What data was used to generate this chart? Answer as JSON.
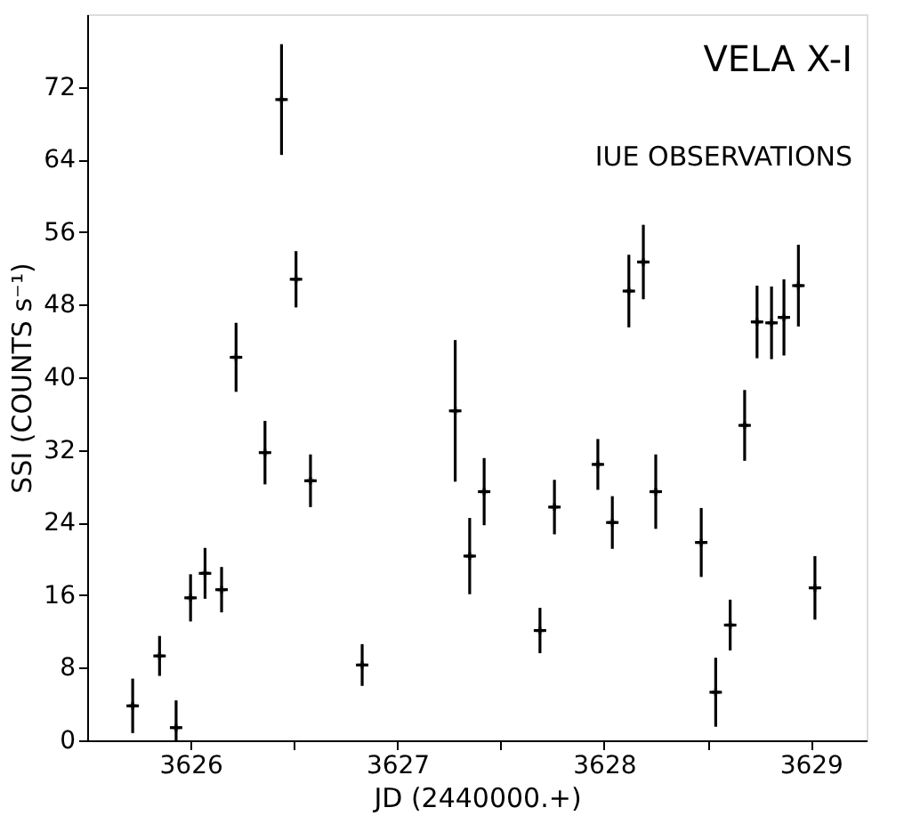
{
  "chart_data": {
    "type": "scatter",
    "xlabel": "JD (2440000.+)",
    "ylabel": "SSI (COUNTS s⁻¹)",
    "annotations": [
      "VELA X-I",
      "IUE OBSERVATIONS"
    ],
    "x": [
      3625.72,
      3625.85,
      3625.93,
      3626.0,
      3626.07,
      3626.15,
      3626.22,
      3626.36,
      3626.44,
      3626.51,
      3626.58,
      3626.83,
      3627.28,
      3627.35,
      3627.42,
      3627.69,
      3627.76,
      3627.97,
      3628.04,
      3628.12,
      3628.19,
      3628.25,
      3628.47,
      3628.54,
      3628.61,
      3628.68,
      3628.74,
      3628.81,
      3628.87,
      3628.94,
      3629.02
    ],
    "values": [
      3.8,
      9.3,
      1.4,
      15.7,
      18.4,
      16.6,
      42.2,
      31.7,
      70.6,
      50.8,
      28.6,
      8.3,
      36.3,
      20.3,
      27.4,
      12.1,
      25.7,
      30.4,
      24.0,
      49.5,
      52.7,
      27.4,
      21.8,
      5.3,
      12.7,
      34.7,
      46.1,
      46.0,
      46.6,
      50.1,
      16.8
    ],
    "errors": [
      3,
      2.2,
      [
        0,
        4.4
      ],
      2.6,
      2.8,
      2.5,
      3.8,
      3.5,
      6.1,
      3.1,
      2.9,
      2.3,
      7.8,
      4.2,
      3.7,
      2.5,
      3,
      2.8,
      2.9,
      4,
      4.1,
      4.1,
      3.8,
      3.8,
      2.8,
      3.9,
      4,
      4,
      4.2,
      4.5,
      3.5
    ],
    "xerrors": [
      0.03,
      0.03,
      0.03,
      0.03,
      0.03,
      0.03,
      0.03,
      0.03,
      0.03,
      0.03,
      0.03,
      0.03,
      0.03,
      0.03,
      0.03,
      0.03,
      0.03,
      0.03,
      0.03,
      0.03,
      0.03,
      0.03,
      0.03,
      0.03,
      0.03,
      0.03,
      0.03,
      0.03,
      0.03,
      0.03,
      0.03
    ],
    "color": "#000000",
    "xlim": [
      3625.5,
      3629.27
    ],
    "ylim": [
      0,
      80
    ],
    "xticks": [
      3626,
      {
        "value": 3626.5,
        "label": null
      },
      3627,
      {
        "value": 3627.5,
        "label": null
      },
      3628,
      {
        "value": 3628.5,
        "label": null
      },
      3629
    ],
    "yticks": [
      0,
      8,
      16,
      24,
      32,
      40,
      48,
      56,
      64,
      72
    ],
    "grid": false,
    "marker": "cross"
  }
}
